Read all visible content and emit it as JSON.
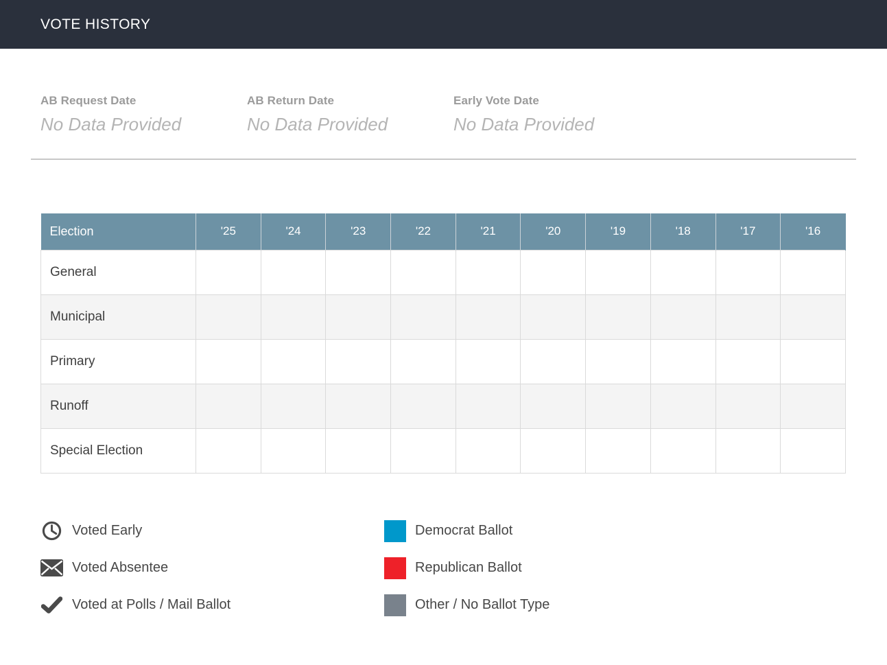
{
  "header": {
    "title": "VOTE HISTORY"
  },
  "fields": [
    {
      "label": "AB Request Date",
      "value": "No Data Provided"
    },
    {
      "label": "AB Return Date",
      "value": "No Data Provided"
    },
    {
      "label": "Early Vote Date",
      "value": "No Data Provided"
    }
  ],
  "table": {
    "columns": [
      "Election",
      "'25",
      "'24",
      "'23",
      "'22",
      "'21",
      "'20",
      "'19",
      "'18",
      "'17",
      "'16"
    ],
    "rows": [
      {
        "label": "General",
        "cells": [
          "",
          "",
          "",
          "",
          "",
          "",
          "",
          "",
          "",
          ""
        ]
      },
      {
        "label": "Municipal",
        "cells": [
          "",
          "",
          "",
          "",
          "",
          "",
          "",
          "",
          "",
          ""
        ]
      },
      {
        "label": "Primary",
        "cells": [
          "",
          "",
          "",
          "",
          "",
          "",
          "",
          "",
          "",
          ""
        ]
      },
      {
        "label": "Runoff",
        "cells": [
          "",
          "",
          "",
          "",
          "",
          "",
          "",
          "",
          "",
          ""
        ]
      },
      {
        "label": "Special Election",
        "cells": [
          "",
          "",
          "",
          "",
          "",
          "",
          "",
          "",
          "",
          ""
        ]
      }
    ]
  },
  "legend": {
    "left": [
      {
        "icon": "clock-icon",
        "label": "Voted Early"
      },
      {
        "icon": "envelope-icon",
        "label": "Voted Absentee"
      },
      {
        "icon": "checkmark-icon",
        "label": "Voted at Polls / Mail Ballot"
      }
    ],
    "right": [
      {
        "icon": "swatch",
        "color": "#0098cb",
        "label": "Democrat Ballot"
      },
      {
        "icon": "swatch",
        "color": "#ee2129",
        "label": "Republican Ballot"
      },
      {
        "icon": "swatch",
        "color": "#79828c",
        "label": "Other / No Ballot Type"
      }
    ]
  },
  "colors": {
    "topbar_bg": "#2a303c",
    "table_header_bg": "#6d92a5",
    "row_stripe": "#f4f4f4",
    "cell_border": "#dadada",
    "field_label": "#9b9b9b",
    "field_value": "#b4b4b4",
    "icon_gray": "#4a4a4a",
    "democrat_blue": "#0098cb",
    "republican_red": "#ee2129",
    "other_gray": "#79828c"
  }
}
